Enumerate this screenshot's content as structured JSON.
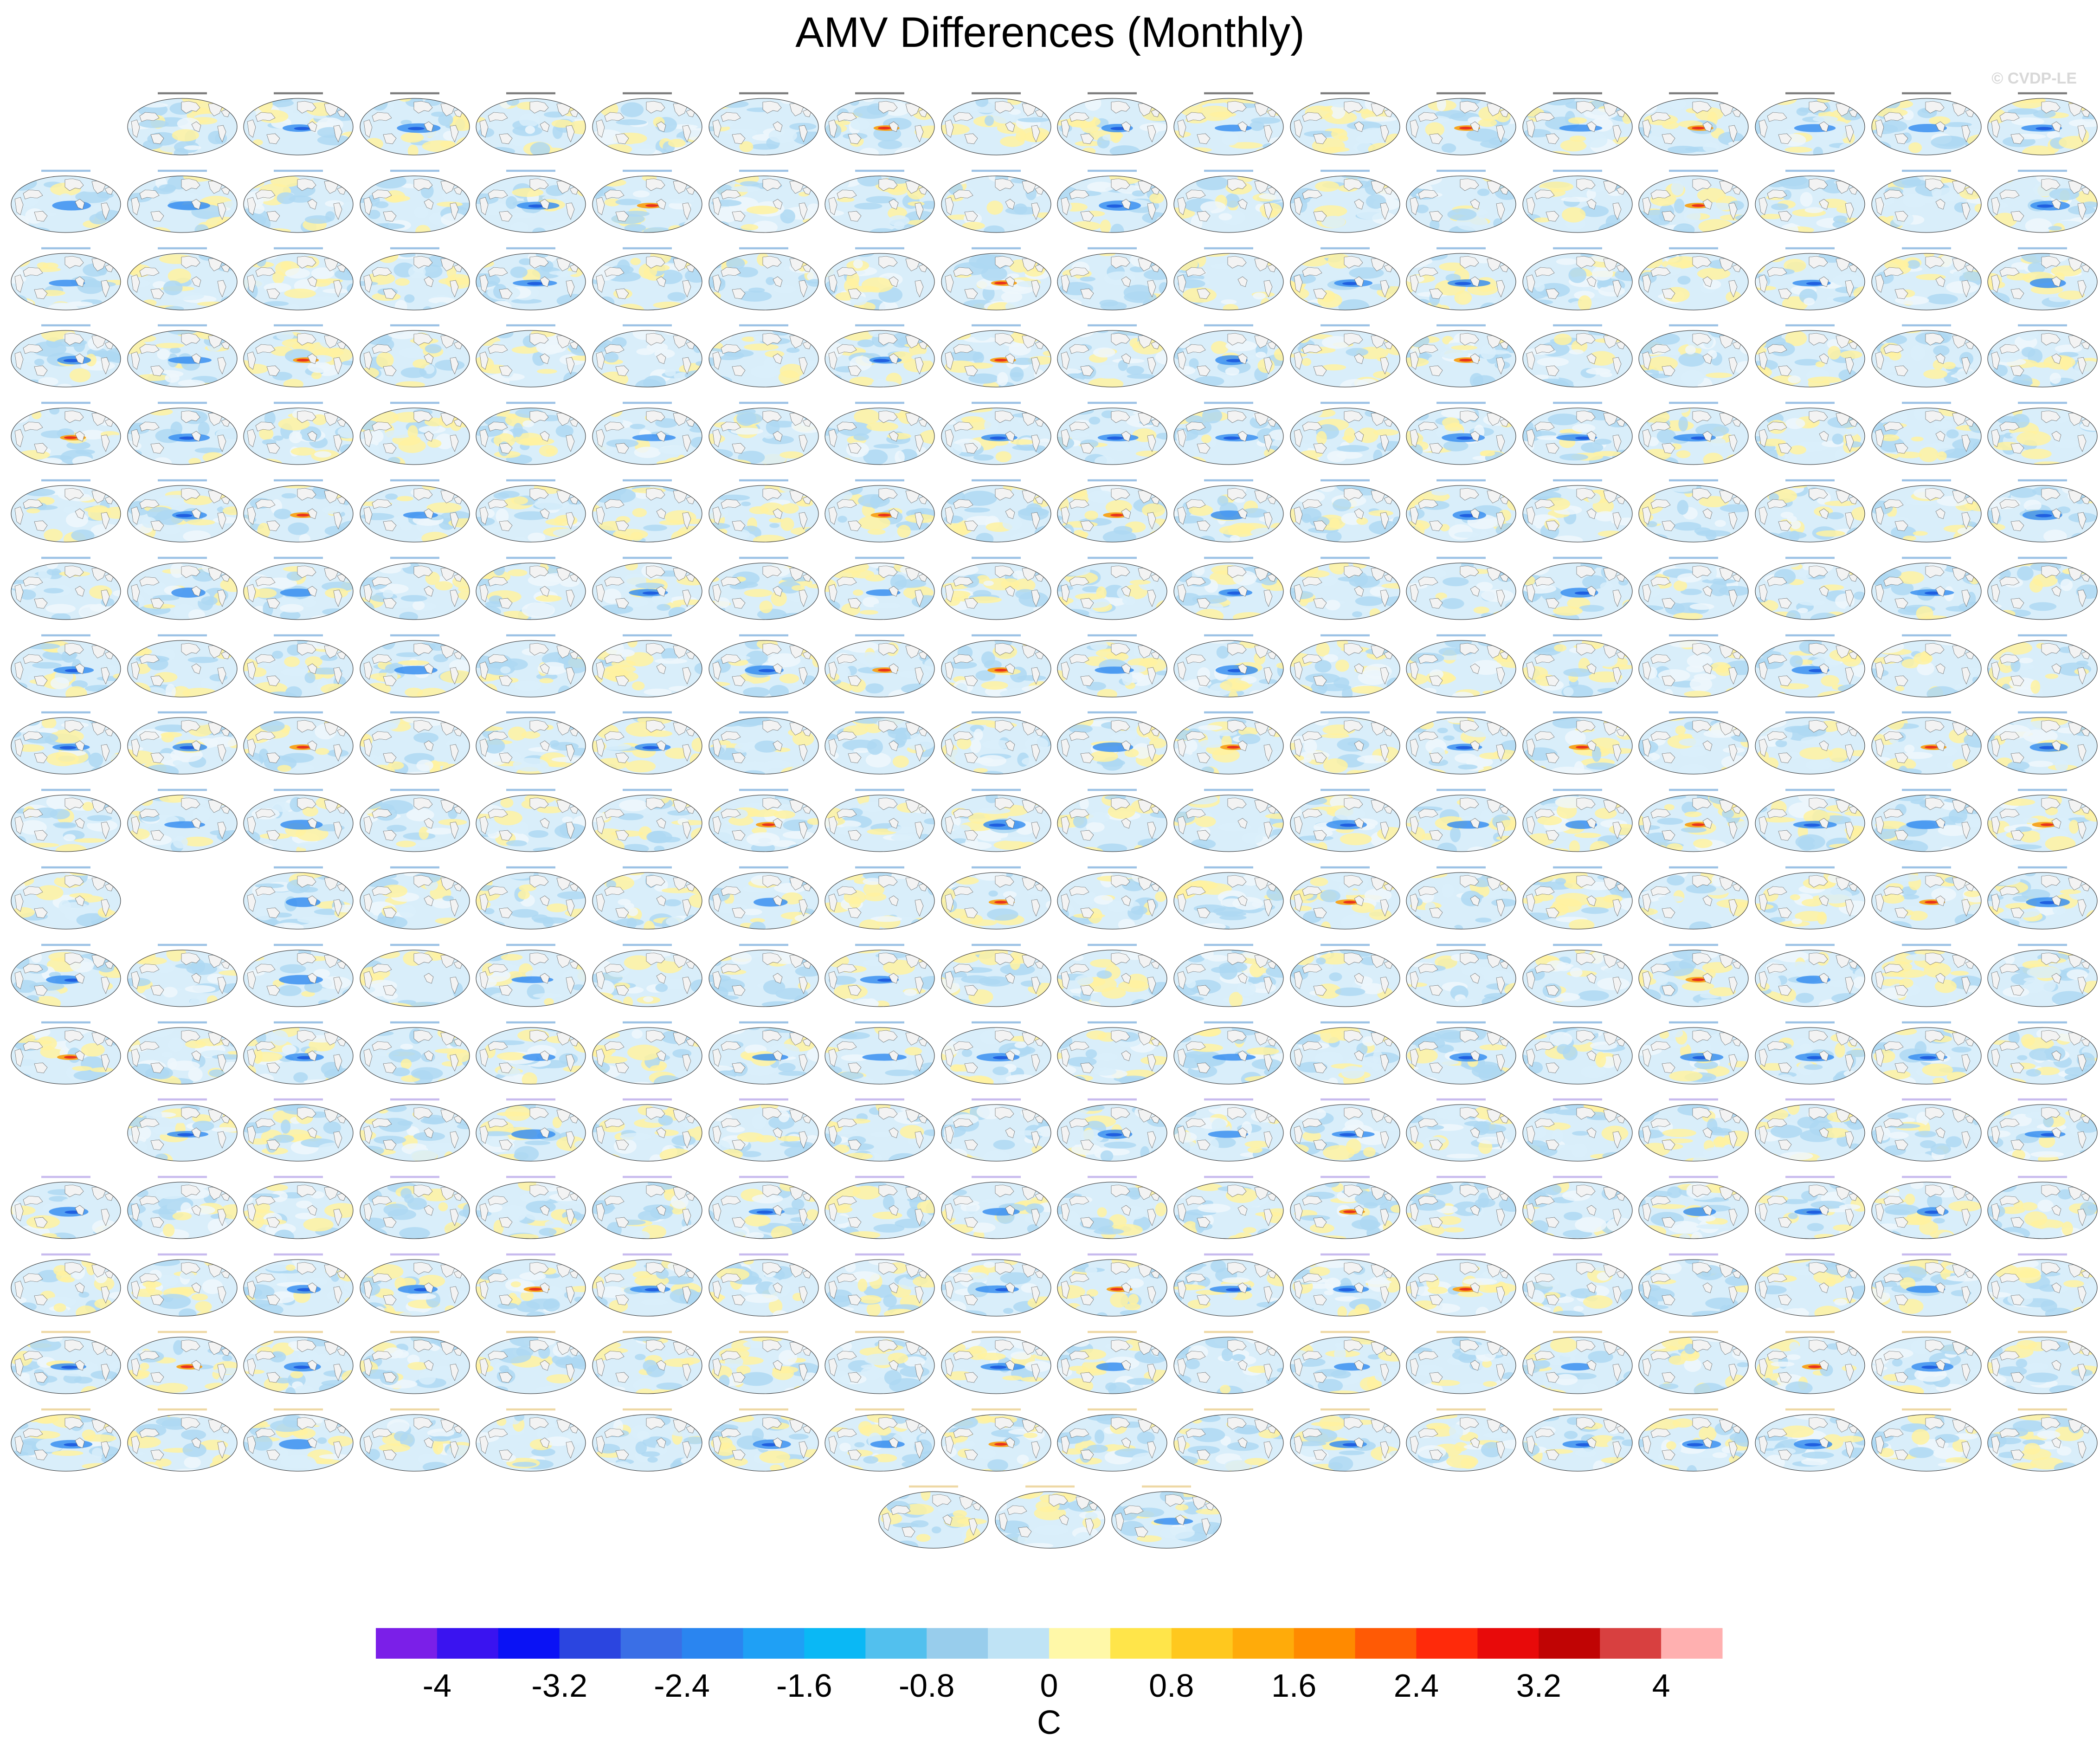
{
  "title": "AMV Differences (Monthly)",
  "credit": "© CVDP-LE",
  "colors": {
    "ocean_blue": "#aed8f2",
    "ocean_light": "#d9eefa",
    "ocean_pale": "#eef7fc",
    "ocean_yellow": "#fff2a0",
    "land_gray": "#f3f3f3",
    "coast": "#4a4a4a",
    "ocean_outline": "#222222",
    "blob_deep_blue": "#1f5fe0",
    "blob_mid_blue": "#3a8ff0",
    "blob_orange": "#f6a623",
    "blob_red": "#e8321c",
    "title_blue": "#4a8fd0",
    "title_purple": "#9a82e0",
    "title_gold": "#e0b85a"
  },
  "chart_data": {
    "type": "heatmap",
    "title": "AMV Differences (Monthly)",
    "description_note": "",
    "panel_rows": [
      {
        "row": 1,
        "panels": 17,
        "skip_start": 1
      },
      {
        "row": 2,
        "panels": 18,
        "skip_start": 0
      },
      {
        "row": 3,
        "panels": 18,
        "skip_start": 0
      },
      {
        "row": 4,
        "panels": 18,
        "skip_start": 0
      },
      {
        "row": 5,
        "panels": 18,
        "skip_start": 0
      },
      {
        "row": 6,
        "panels": 18,
        "skip_start": 0
      },
      {
        "row": 7,
        "panels": 18,
        "skip_start": 0
      },
      {
        "row": 8,
        "panels": 18,
        "skip_start": 0
      },
      {
        "row": 9,
        "panels": 18,
        "skip_start": 0
      },
      {
        "row": 10,
        "panels": 18,
        "skip_start": 0
      },
      {
        "row": 11,
        "panels": 17,
        "skip_start": 0,
        "gap_after_first": 1
      },
      {
        "row": 12,
        "panels": 18,
        "skip_start": 0
      },
      {
        "row": 13,
        "panels": 18,
        "skip_start": 0
      },
      {
        "row": 14,
        "panels": 17,
        "skip_start": 1
      },
      {
        "row": 15,
        "panels": 18,
        "skip_start": 0
      },
      {
        "row": 16,
        "panels": 18,
        "skip_start": 0
      },
      {
        "row": 17,
        "panels": 18,
        "skip_start": 0
      },
      {
        "row": 18,
        "panels": 18,
        "skip_start": 0
      },
      {
        "row": 19,
        "panels": 3,
        "centered": true
      }
    ],
    "row_title_color_groups": [
      "black",
      "blue",
      "blue",
      "blue",
      "blue",
      "blue",
      "blue",
      "blue",
      "blue",
      "blue",
      "blue",
      "blue",
      "blue",
      "purple",
      "purple",
      "purple",
      "gold",
      "gold",
      "gold"
    ],
    "colorbar": {
      "min": -4.4,
      "max": 4.4,
      "step": 0.4,
      "colors": [
        "#7b1fe8",
        "#3a13f0",
        "#0a12f5",
        "#2b45e0",
        "#3a6fe6",
        "#2a85f0",
        "#1fa0f5",
        "#0ab8f5",
        "#52c0ee",
        "#98cdec",
        "#bfe3f5",
        "#fff8a8",
        "#ffe54a",
        "#ffc81e",
        "#ffab0a",
        "#ff8a00",
        "#ff5a05",
        "#ff2a0a",
        "#e80a0a",
        "#c00404",
        "#d84040",
        "#ffb0b0"
      ],
      "tick_values": [
        -4,
        -3.2,
        -2.4,
        -1.6,
        -0.8,
        0,
        0.8,
        1.6,
        2.4,
        3.2,
        4
      ],
      "tick_labels": [
        "-4",
        "-3.2",
        "-2.4",
        "-1.6",
        "-0.8",
        "0",
        "0.8",
        "1.6",
        "2.4",
        "3.2",
        "4"
      ],
      "unit_label": "C"
    }
  }
}
